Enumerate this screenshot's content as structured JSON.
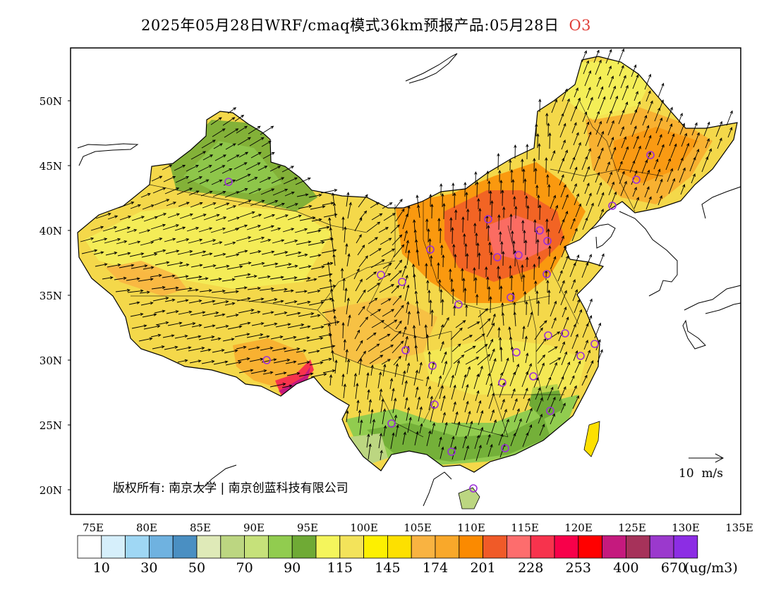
{
  "header": {
    "title": "2025年05月28日WRF/cmaq模式36km预报产品:05月28日",
    "species": "O3"
  },
  "axes": {
    "lat_labels": [
      "50N",
      "45N",
      "40N",
      "35N",
      "30N",
      "25N",
      "20N"
    ],
    "lon_labels": [
      "75E",
      "80E",
      "85E",
      "90E",
      "95E",
      "100E",
      "105E",
      "110E",
      "115E",
      "120E",
      "125E",
      "130E",
      "135E"
    ]
  },
  "vector_legend": {
    "label": "10  m/s"
  },
  "copyright": "版权所有: 南京大学 | 南京创蓝科技有限公司",
  "colorbar": {
    "colors": [
      "#ffffff",
      "#d6effb",
      "#9fd7f4",
      "#6fb2e0",
      "#4a8fc2",
      "#dfeab8",
      "#bcd681",
      "#c6e17a",
      "#91cc4f",
      "#6faa35",
      "#f4f55c",
      "#f3e35a",
      "#fdf000",
      "#fde000",
      "#f9b341",
      "#f9a82a",
      "#fb8a00",
      "#f05a28",
      "#fd6d6d",
      "#f7334d",
      "#f8004a",
      "#ff0000",
      "#c51a7e",
      "#a6325a",
      "#9b39cd",
      "#8c2de4"
    ],
    "labels": [
      "10",
      "30",
      "50",
      "70",
      "90",
      "115",
      "145",
      "174",
      "201",
      "228",
      "253",
      "400",
      "670"
    ],
    "unit": "(ug/m3)"
  }
}
